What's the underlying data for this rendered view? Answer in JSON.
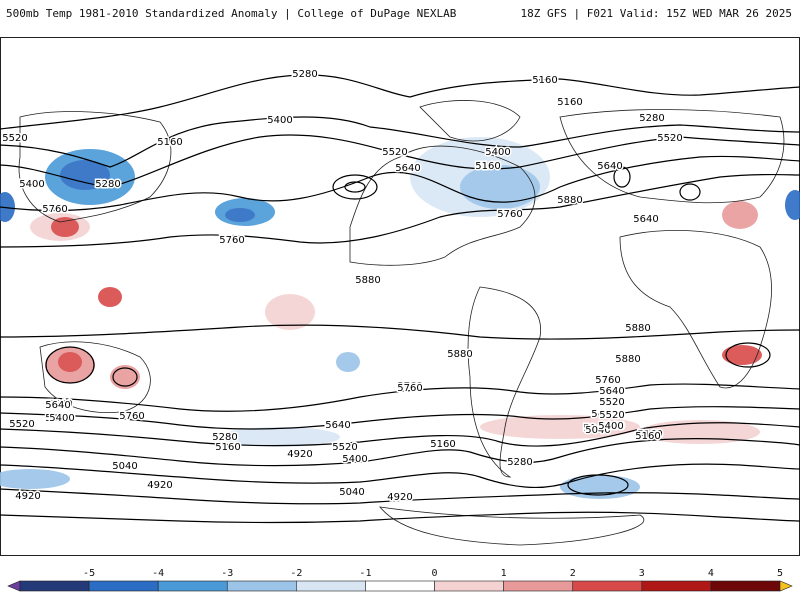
{
  "header": {
    "title_left": "500mb Temp 1981-2010 Standardized Anomaly | College of DuPage NEXLAB",
    "title_right": "18Z GFS | F021 Valid: 15Z WED MAR 26 2025"
  },
  "contours": {
    "labels": [
      "5280",
      "5160",
      "5160",
      "5520",
      "5280",
      "5400",
      "5160",
      "5520",
      "5640",
      "5400",
      "5280",
      "5400",
      "5160",
      "5640",
      "5520",
      "5760",
      "5760",
      "5880",
      "5640",
      "5760",
      "5880",
      "5880",
      "5880",
      "5880",
      "5760",
      "5760",
      "5640",
      "5520",
      "5400",
      "5280",
      "5160",
      "5040",
      "4920",
      "4920",
      "5040",
      "5640",
      "5520",
      "5400",
      "5280",
      "5160",
      "5520",
      "5400",
      "5160",
      "5280",
      "5040",
      "4920",
      "5760",
      "5640",
      "5520",
      "5400",
      "5040",
      "5160",
      "4920",
      "5640",
      "5760",
      "5520",
      "5400"
    ]
  },
  "colorbar": {
    "ticks": [
      "-5",
      "-4",
      "-3",
      "-2",
      "-1",
      "0",
      "1",
      "2",
      "3",
      "4",
      "5"
    ],
    "colors": [
      "#6b3fa0",
      "#243a78",
      "#2b6cc4",
      "#4a9ad8",
      "#9cc4e8",
      "#d8e6f4",
      "#ffffff",
      "#f4d2d2",
      "#e89a9a",
      "#d84a4a",
      "#b01818",
      "#6e0808",
      "#f5c21a"
    ]
  }
}
